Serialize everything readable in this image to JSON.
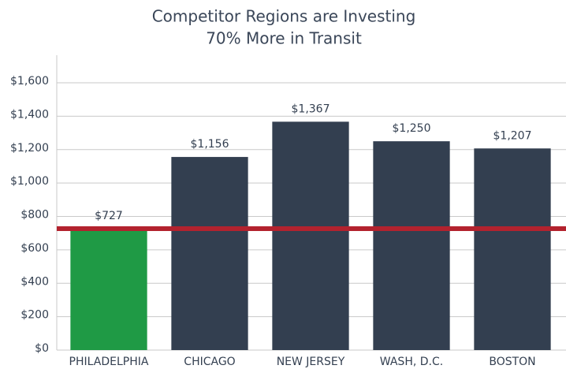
{
  "chart_data": {
    "type": "bar",
    "title": [
      "Competitor Regions are Investing",
      "70% More in Transit"
    ],
    "categories": [
      "PHILADELPHIA",
      "CHICAGO",
      "NEW JERSEY",
      "WASH, D.C.",
      "BOSTON"
    ],
    "values": [
      727,
      1156,
      1367,
      1250,
      1207
    ],
    "value_labels": [
      "$727",
      "$1,156",
      "$1,367",
      "$1,250",
      "$1,207"
    ],
    "colors": [
      "#1f9a45",
      "#333f50",
      "#333f50",
      "#333f50",
      "#333f50"
    ],
    "reference_color": "#b3222e",
    "ylim": [
      0,
      1600
    ],
    "yticks": [
      {
        "value": 0,
        "label": "$0"
      },
      {
        "value": 200,
        "label": "$200"
      },
      {
        "value": 400,
        "label": "$400"
      },
      {
        "value": 600,
        "label": "$600"
      },
      {
        "value": 800,
        "label": "$800"
      },
      {
        "value": 1000,
        "label": "$1,000"
      },
      {
        "value": 1200,
        "label": "$1,200"
      },
      {
        "value": 1400,
        "label": "$1,400"
      },
      {
        "value": 1600,
        "label": "$1,600"
      }
    ],
    "grid": true
  }
}
